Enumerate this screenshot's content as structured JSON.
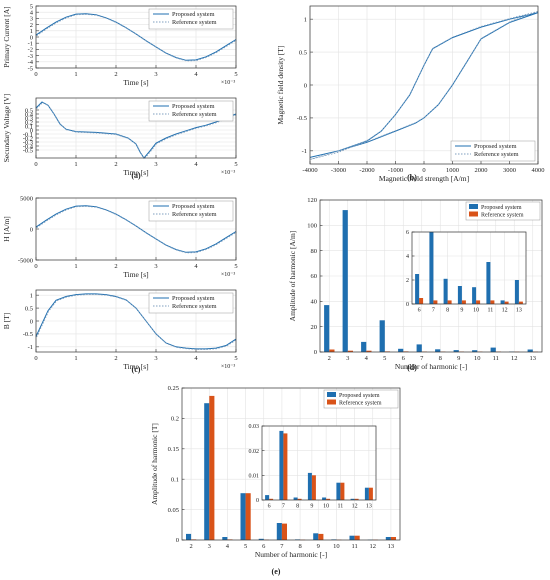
{
  "colors": {
    "proposed": "#1f6fb0",
    "reference": "#d95319",
    "reference_line": "#7f9fbf",
    "grid": "#e3e3e3",
    "axis": "#333333"
  },
  "panel_labels": [
    "(a)",
    "(b)",
    "(c)",
    "(d)",
    "(e)"
  ],
  "exponent_label": "×10⁻³",
  "chart_data": [
    {
      "id": "a1",
      "type": "line",
      "xlabel": "Time [s]",
      "ylabel": "Primary Current [A]",
      "xlim": [
        0,
        5
      ],
      "ylim": [
        -5,
        5
      ],
      "xticks": [
        0,
        1,
        2,
        3,
        4,
        5
      ],
      "yticks": [
        -5,
        -4,
        -3,
        -2,
        -1,
        0,
        1,
        2,
        3,
        4,
        5
      ],
      "xscale_exponent": "-3",
      "grid": true,
      "legend": "top-right",
      "series": [
        {
          "name": "Proposed system",
          "x": [
            0,
            0.25,
            0.5,
            0.75,
            1,
            1.25,
            1.5,
            1.75,
            2,
            2.25,
            2.5,
            2.75,
            3,
            3.25,
            3.5,
            3.75,
            4,
            4.25,
            4.5,
            4.75,
            5
          ],
          "y": [
            0.3,
            1.4,
            2.4,
            3.2,
            3.7,
            3.75,
            3.6,
            3.1,
            2.4,
            1.5,
            0.5,
            -0.6,
            -1.6,
            -2.6,
            -3.3,
            -3.75,
            -3.7,
            -3.2,
            -2.4,
            -1.4,
            -0.4
          ]
        },
        {
          "name": "Reference system",
          "x": [
            0,
            0.25,
            0.5,
            0.75,
            1,
            1.25,
            1.5,
            1.75,
            2,
            2.25,
            2.5,
            2.75,
            3,
            3.25,
            3.5,
            3.75,
            4,
            4.25,
            4.5,
            4.75,
            5
          ],
          "y": [
            0.3,
            1.4,
            2.4,
            3.2,
            3.7,
            3.75,
            3.6,
            3.1,
            2.4,
            1.5,
            0.5,
            -0.6,
            -1.6,
            -2.6,
            -3.3,
            -3.75,
            -3.7,
            -3.2,
            -2.4,
            -1.4,
            -0.4
          ]
        }
      ]
    },
    {
      "id": "a2",
      "type": "line",
      "xlabel": "Time [s]",
      "ylabel": "Secundary Voltage [V]",
      "xlim": [
        0,
        5
      ],
      "ylim": [
        -0.7,
        0.8
      ],
      "xticks": [
        0,
        1,
        2,
        3,
        4,
        5
      ],
      "yticks": [
        -0.5,
        -0.4,
        -0.3,
        -0.2,
        -0.1,
        0,
        0.1,
        0.2,
        0.3,
        0.4,
        0.5
      ],
      "xscale_exponent": "-3",
      "grid": true,
      "legend": "top-right",
      "series": [
        {
          "name": "Proposed system",
          "x": [
            0,
            0.15,
            0.3,
            0.45,
            0.6,
            0.75,
            1,
            1.5,
            2,
            2.3,
            2.5,
            2.6,
            2.7,
            2.85,
            3,
            3.25,
            3.5,
            3.75,
            4,
            4.25,
            4.5,
            4.75,
            5
          ],
          "y": [
            0.55,
            0.7,
            0.62,
            0.4,
            0.15,
            0.02,
            -0.04,
            -0.06,
            -0.1,
            -0.2,
            -0.35,
            -0.55,
            -0.7,
            -0.52,
            -0.33,
            -0.2,
            -0.1,
            -0.02,
            0.06,
            0.12,
            0.2,
            0.3,
            0.4
          ]
        },
        {
          "name": "Reference system",
          "x": [
            0,
            0.15,
            0.3,
            0.45,
            0.6,
            0.75,
            1,
            1.5,
            2,
            2.3,
            2.5,
            2.6,
            2.7,
            2.85,
            3,
            3.25,
            3.5,
            3.75,
            4,
            4.25,
            4.5,
            4.75,
            5
          ],
          "y": [
            0.55,
            0.7,
            0.62,
            0.4,
            0.15,
            0.02,
            -0.04,
            -0.06,
            -0.1,
            -0.2,
            -0.35,
            -0.55,
            -0.7,
            -0.52,
            -0.33,
            -0.2,
            -0.1,
            -0.02,
            0.06,
            0.12,
            0.2,
            0.3,
            0.4
          ]
        }
      ]
    },
    {
      "id": "b",
      "type": "line",
      "xlabel": "Magnetic field strength [A/m]",
      "ylabel": "Magnetic field density [T]",
      "xlim": [
        -4000,
        4000
      ],
      "ylim": [
        -1.2,
        1.2
      ],
      "xticks": [
        -4000,
        -3000,
        -2000,
        -1000,
        0,
        1000,
        2000,
        3000,
        4000
      ],
      "yticks": [
        -1,
        -0.5,
        0,
        0.5,
        1
      ],
      "grid": true,
      "legend": "bottom-right",
      "series": [
        {
          "name": "Proposed system",
          "x": [
            -4000,
            -3000,
            -2000,
            -1500,
            -1000,
            -500,
            0,
            300,
            1000,
            2000,
            3000,
            4000,
            3000,
            2000,
            1500,
            1000,
            500,
            0,
            -300,
            -1000,
            -2000,
            -3000,
            -4000
          ],
          "y": [
            -1.1,
            -1.0,
            -0.85,
            -0.7,
            -0.45,
            -0.15,
            0.3,
            0.55,
            0.72,
            0.88,
            1.0,
            1.1,
            0.95,
            0.7,
            0.35,
            0.0,
            -0.3,
            -0.5,
            -0.58,
            -0.7,
            -0.87,
            -1.0,
            -1.1
          ]
        },
        {
          "name": "Reference system",
          "x": [
            -4000,
            -3000,
            -2000,
            -1500,
            -1000,
            -500,
            0,
            300,
            1000,
            2000,
            3000,
            4000,
            3000,
            2000,
            1500,
            1000,
            500,
            0,
            -300,
            -1000,
            -2000,
            -3000,
            -4000
          ],
          "y": [
            -1.12,
            -1.01,
            -0.83,
            -0.68,
            -0.43,
            -0.12,
            0.33,
            0.57,
            0.74,
            0.9,
            1.02,
            1.13,
            0.97,
            0.72,
            0.38,
            0.03,
            -0.28,
            -0.48,
            -0.56,
            -0.68,
            -0.85,
            -0.99,
            -1.12
          ]
        }
      ]
    },
    {
      "id": "c1",
      "type": "line",
      "xlabel": "Time [s]",
      "ylabel": "H [A/m]",
      "xlim": [
        0,
        5
      ],
      "ylim": [
        -5000,
        5000
      ],
      "xticks": [
        0,
        1,
        2,
        3,
        4,
        5
      ],
      "yticks": [
        -5000,
        0,
        5000
      ],
      "xscale_exponent": "-3",
      "grid": true,
      "legend": "top-right",
      "series": [
        {
          "name": "Proposed system",
          "x": [
            0,
            0.25,
            0.5,
            0.75,
            1,
            1.25,
            1.5,
            1.75,
            2,
            2.25,
            2.5,
            2.75,
            3,
            3.25,
            3.5,
            3.75,
            4,
            4.25,
            4.5,
            4.75,
            5
          ],
          "y": [
            300,
            1400,
            2400,
            3200,
            3700,
            3750,
            3600,
            3100,
            2400,
            1500,
            500,
            -600,
            -1600,
            -2600,
            -3300,
            -3750,
            -3700,
            -3200,
            -2400,
            -1400,
            -400
          ]
        },
        {
          "name": "Reference system",
          "x": [
            0,
            0.25,
            0.5,
            0.75,
            1,
            1.25,
            1.5,
            1.75,
            2,
            2.25,
            2.5,
            2.75,
            3,
            3.25,
            3.5,
            3.75,
            4,
            4.25,
            4.5,
            4.75,
            5
          ],
          "y": [
            300,
            1400,
            2400,
            3200,
            3700,
            3750,
            3600,
            3100,
            2400,
            1500,
            500,
            -600,
            -1600,
            -2600,
            -3300,
            -3750,
            -3700,
            -3200,
            -2400,
            -1400,
            -400
          ]
        }
      ]
    },
    {
      "id": "c2",
      "type": "line",
      "xlabel": "Time [s]",
      "ylabel": "B [T]",
      "xlim": [
        0,
        5
      ],
      "ylim": [
        -1.2,
        1.2
      ],
      "xticks": [
        0,
        1,
        2,
        3,
        4,
        5
      ],
      "yticks": [
        -1,
        -0.5,
        0,
        0.5,
        1
      ],
      "xscale_exponent": "-3",
      "grid": true,
      "legend": "top-right",
      "series": [
        {
          "name": "Proposed system",
          "x": [
            0,
            0.15,
            0.3,
            0.5,
            0.75,
            1,
            1.25,
            1.5,
            1.75,
            2,
            2.25,
            2.5,
            2.75,
            3,
            3.25,
            3.5,
            3.75,
            4,
            4.25,
            4.5,
            4.75,
            5
          ],
          "y": [
            -0.6,
            -0.1,
            0.4,
            0.8,
            0.95,
            1.02,
            1.05,
            1.05,
            1.02,
            0.95,
            0.82,
            0.5,
            0.0,
            -0.5,
            -0.85,
            -1.0,
            -1.05,
            -1.08,
            -1.08,
            -1.05,
            -0.95,
            -0.7
          ]
        },
        {
          "name": "Reference system",
          "x": [
            0,
            0.15,
            0.3,
            0.5,
            0.75,
            1,
            1.25,
            1.5,
            1.75,
            2,
            2.25,
            2.5,
            2.75,
            3,
            3.25,
            3.5,
            3.75,
            4,
            4.25,
            4.5,
            4.75,
            5
          ],
          "y": [
            -0.6,
            -0.1,
            0.4,
            0.8,
            0.95,
            1.02,
            1.05,
            1.05,
            1.02,
            0.95,
            0.82,
            0.5,
            0.0,
            -0.5,
            -0.85,
            -1.0,
            -1.05,
            -1.08,
            -1.08,
            -1.05,
            -0.95,
            -0.7
          ]
        }
      ]
    },
    {
      "id": "d",
      "type": "bar",
      "xlabel": "Number of harmonic [-]",
      "ylabel": "Amplitude of harmonic [A/m]",
      "ylim": [
        0,
        120
      ],
      "yticks": [
        0,
        20,
        40,
        60,
        80,
        100,
        120
      ],
      "categories": [
        "2",
        "3",
        "4",
        "5",
        "6",
        "7",
        "8",
        "9",
        "10",
        "11",
        "12",
        "13"
      ],
      "grid": true,
      "legend": "top-right",
      "series": [
        {
          "name": "Proposed system",
          "values": [
            37,
            112,
            8,
            25,
            2.5,
            6,
            2.1,
            1.5,
            1.4,
            3.5,
            0.3,
            2.0
          ]
        },
        {
          "name": "Reference system",
          "values": [
            2,
            1,
            1,
            0.5,
            0.5,
            0.3,
            0.3,
            0.3,
            0.3,
            0.3,
            0.2,
            0.2
          ]
        }
      ],
      "inset": {
        "categories": [
          "6",
          "7",
          "8",
          "9",
          "10",
          "11",
          "12",
          "13"
        ],
        "ylim": [
          0,
          6
        ],
        "yticks": [
          0,
          2,
          4,
          6
        ],
        "series": [
          {
            "name": "Proposed system",
            "values": [
              2.5,
              6.0,
              2.1,
              1.5,
              1.4,
              3.5,
              0.3,
              2.0
            ]
          },
          {
            "name": "Reference system",
            "values": [
              0.5,
              0.3,
              0.3,
              0.3,
              0.3,
              0.3,
              0.2,
              0.2
            ]
          }
        ]
      }
    },
    {
      "id": "e",
      "type": "bar",
      "xlabel": "Number of harmonic [-]",
      "ylabel": "Amplitude of harmonic [T]",
      "ylim": [
        0,
        0.25
      ],
      "yticks": [
        0,
        0.05,
        0.1,
        0.15,
        0.2,
        0.25
      ],
      "categories": [
        "2",
        "3",
        "4",
        "5",
        "6",
        "7",
        "8",
        "9",
        "10",
        "11",
        "12",
        "13"
      ],
      "grid": true,
      "legend": "top-right",
      "series": [
        {
          "name": "Proposed system",
          "values": [
            0.01,
            0.225,
            0.005,
            0.077,
            0.002,
            0.028,
            0.001,
            0.011,
            0.001,
            0.007,
            0.0005,
            0.005
          ]
        },
        {
          "name": "Reference system",
          "values": [
            0.001,
            0.237,
            0.001,
            0.077,
            0.0005,
            0.027,
            0.0005,
            0.01,
            0.0005,
            0.007,
            0.0005,
            0.005
          ]
        }
      ],
      "inset": {
        "categories": [
          "6",
          "7",
          "8",
          "9",
          "10",
          "11",
          "12",
          "13"
        ],
        "ylim": [
          0,
          0.03
        ],
        "yticks": [
          0,
          0.01,
          0.02,
          0.03
        ],
        "series": [
          {
            "name": "Proposed system",
            "values": [
              0.002,
              0.028,
              0.001,
              0.011,
              0.001,
              0.007,
              0.0005,
              0.005
            ]
          },
          {
            "name": "Reference system",
            "values": [
              0.0005,
              0.027,
              0.0005,
              0.01,
              0.0005,
              0.007,
              0.0005,
              0.005
            ]
          }
        ]
      }
    }
  ]
}
